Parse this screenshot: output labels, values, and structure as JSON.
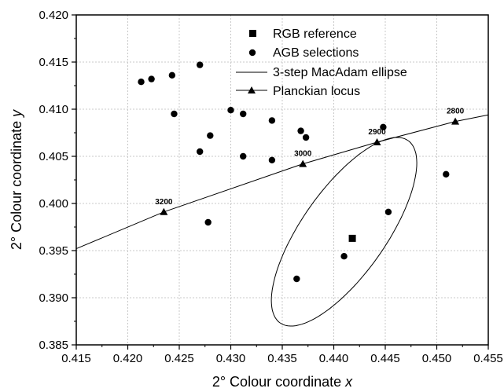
{
  "chart_data": {
    "type": "scatter",
    "xlabel": "2° Colour coordinate x",
    "ylabel": "2° Colour coordinate y",
    "xlabel_parts": {
      "prefix": "2° Colour coordinate ",
      "var": "x"
    },
    "ylabel_parts": {
      "prefix": "2° Colour coordinate ",
      "var": "y"
    },
    "xlim": [
      0.415,
      0.455
    ],
    "ylim": [
      0.385,
      0.42
    ],
    "xticks": [
      "0.415",
      "0.420",
      "0.425",
      "0.430",
      "0.435",
      "0.440",
      "0.445",
      "0.450",
      "0.455"
    ],
    "yticks": [
      "0.385",
      "0.390",
      "0.395",
      "0.400",
      "0.405",
      "0.410",
      "0.415",
      "0.420"
    ],
    "grid": true,
    "legend_position": "top-right",
    "series": [
      {
        "name": "RGB reference",
        "marker": "square",
        "points": [
          [
            0.4418,
            0.3963
          ]
        ]
      },
      {
        "name": "AGB selections",
        "marker": "circle",
        "points": [
          [
            0.4213,
            0.4129
          ],
          [
            0.4223,
            0.4132
          ],
          [
            0.4243,
            0.4136
          ],
          [
            0.427,
            0.4147
          ],
          [
            0.4245,
            0.4095
          ],
          [
            0.43,
            0.4099
          ],
          [
            0.4312,
            0.4095
          ],
          [
            0.428,
            0.4072
          ],
          [
            0.427,
            0.4055
          ],
          [
            0.4312,
            0.405
          ],
          [
            0.434,
            0.4088
          ],
          [
            0.4368,
            0.4077
          ],
          [
            0.4373,
            0.407
          ],
          [
            0.434,
            0.4046
          ],
          [
            0.4448,
            0.4081
          ],
          [
            0.4509,
            0.4031
          ],
          [
            0.4453,
            0.3991
          ],
          [
            0.4278,
            0.398
          ],
          [
            0.441,
            0.3944
          ],
          [
            0.4364,
            0.392
          ]
        ]
      },
      {
        "name": "3-step MacAdam ellipse",
        "type": "ellipse",
        "center": [
          0.441,
          0.397
        ],
        "semi_major": 0.0115,
        "semi_minor": 0.0042,
        "angle_deg": 58
      },
      {
        "name": "Planckian locus",
        "type": "line",
        "x": [
          0.415,
          0.4235,
          0.437,
          0.4442,
          0.4518,
          0.455
        ],
        "y": [
          0.3952,
          0.3991,
          0.4042,
          0.4065,
          0.4087,
          0.4094
        ],
        "markers": [
          {
            "x": 0.4235,
            "y": 0.3991,
            "label": "3200"
          },
          {
            "x": 0.437,
            "y": 0.4042,
            "label": "3000"
          },
          {
            "x": 0.4442,
            "y": 0.4065,
            "label": "2900"
          },
          {
            "x": 0.4518,
            "y": 0.4087,
            "label": "2800"
          }
        ]
      }
    ]
  }
}
